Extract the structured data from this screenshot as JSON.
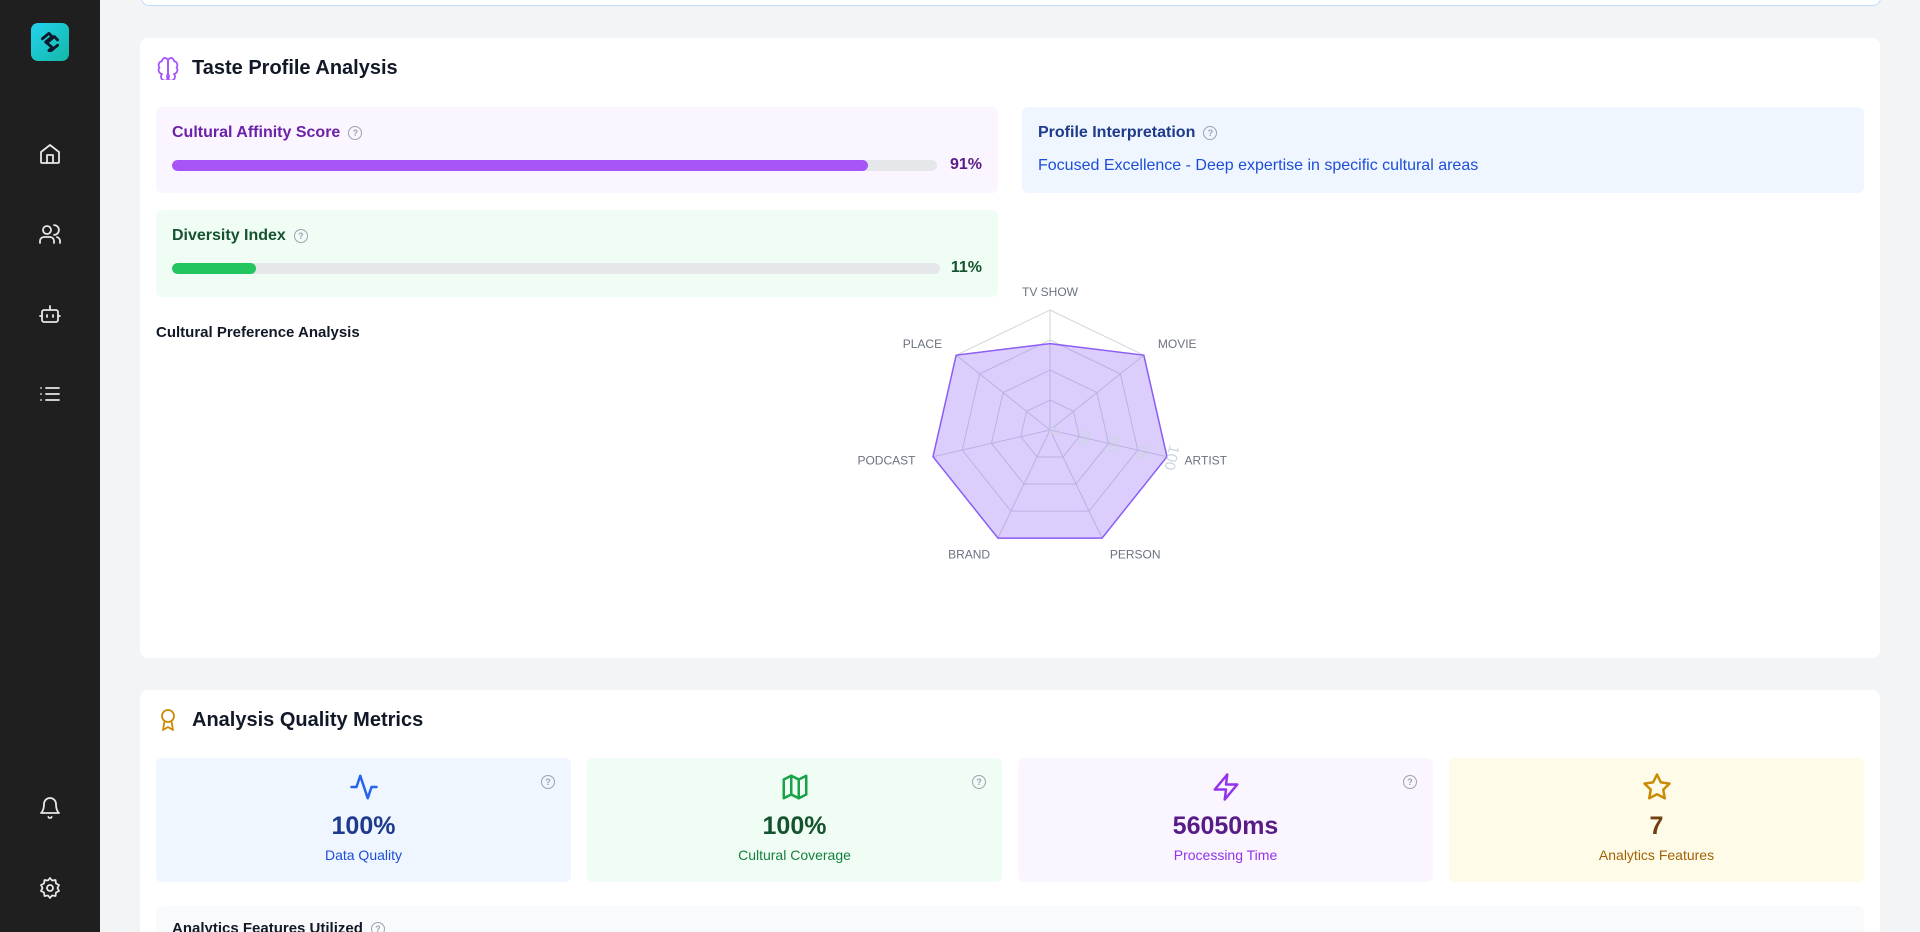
{
  "sidebar": {
    "logo": "logo-icon",
    "nav": [
      "home-icon",
      "users-icon",
      "bot-icon",
      "list-icon"
    ],
    "bottom": [
      "bell-icon",
      "settings-icon"
    ]
  },
  "taste_profile": {
    "title": "Taste Profile Analysis",
    "icon": "brain-icon",
    "affinity": {
      "label": "Cultural Affinity Score",
      "value": 0.91,
      "pct_text": "91%",
      "color": "#a855f7"
    },
    "diversity": {
      "label": "Diversity Index",
      "value": 0.11,
      "pct_text": "11%",
      "color": "#22c55e"
    },
    "interpretation": {
      "label": "Profile Interpretation",
      "text": "Focused Excellence - Deep expertise in specific cultural areas"
    },
    "preference_title": "Cultural Preference Analysis"
  },
  "chart_data": {
    "type": "radar",
    "axes": [
      "TV SHOW",
      "MOVIE",
      "ARTIST",
      "PERSON",
      "BRAND",
      "PODCAST",
      "PLACE"
    ],
    "values": [
      72,
      100,
      100,
      100,
      100,
      100,
      100
    ],
    "ticks": [
      "0",
      "25",
      "50",
      "75",
      "100"
    ],
    "range": [
      0,
      100
    ],
    "color": "#8b5cf6"
  },
  "quality": {
    "title": "Analysis Quality Metrics",
    "icon": "award-icon",
    "stats": [
      {
        "icon": "activity-icon",
        "value": "100%",
        "label": "Data Quality",
        "bg": "#eff6ff",
        "fg": "#1e3a8a",
        "label_color": "#1d4ed8",
        "icon_color": "#2563eb"
      },
      {
        "icon": "map-icon",
        "value": "100%",
        "label": "Cultural Coverage",
        "bg": "#f0fdf4",
        "fg": "#14532d",
        "label_color": "#15803d",
        "icon_color": "#16a34a"
      },
      {
        "icon": "zap-icon",
        "value": "56050ms",
        "label": "Processing Time",
        "bg": "#faf5ff",
        "fg": "#581c87",
        "label_color": "#9333ea",
        "icon_color": "#9333ea"
      },
      {
        "icon": "star-icon",
        "value": "7",
        "label": "Analytics Features",
        "bg": "#fefce8",
        "fg": "#713f12",
        "label_color": "#a16207",
        "icon_color": "#ca8a04"
      }
    ],
    "features_title": "Analytics Features Utilized"
  }
}
